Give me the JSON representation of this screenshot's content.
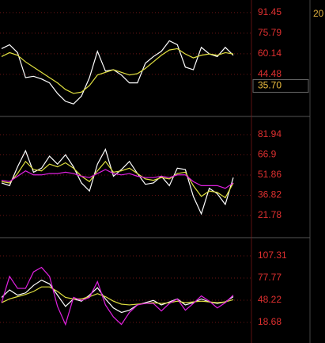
{
  "side_label": "20",
  "chart_data": [
    {
      "type": "line",
      "ylim": [
        12.5,
        101
      ],
      "yticks": [
        91.45,
        75.79,
        60.14,
        44.48
      ],
      "grid": true,
      "marker": {
        "value": 35.7,
        "label": "35.70"
      },
      "series": [
        {
          "name": "white",
          "color": "#ffffff",
          "values": [
            64,
            67,
            61,
            42,
            43,
            41,
            38,
            30,
            24,
            22,
            28,
            42,
            62,
            47,
            48,
            44,
            38,
            38,
            53,
            58,
            62,
            70,
            67,
            50,
            48,
            65,
            60,
            58,
            65,
            59
          ]
        },
        {
          "name": "yellow",
          "color": "#e0e040",
          "values": [
            58,
            61,
            59,
            54,
            50,
            46,
            42,
            38,
            33,
            30,
            31,
            36,
            44,
            46,
            48,
            46,
            44,
            45,
            49,
            54,
            59,
            63,
            64,
            60,
            57,
            59,
            60,
            59,
            61,
            60
          ]
        }
      ]
    },
    {
      "type": "line",
      "ylim": [
        5.3,
        95.5
      ],
      "yticks": [
        81.94,
        66.9,
        51.86,
        36.82,
        21.78
      ],
      "grid": true,
      "series": [
        {
          "name": "white",
          "color": "#ffffff",
          "values": [
            46,
            44,
            58,
            70,
            54,
            57,
            66,
            60,
            67,
            58,
            46,
            40,
            60,
            71,
            51,
            56,
            62,
            53,
            45,
            46,
            51,
            44,
            57,
            56,
            36,
            23,
            42,
            38,
            30,
            50
          ]
        },
        {
          "name": "yellow",
          "color": "#e0e040",
          "values": [
            47,
            46,
            53,
            62,
            56,
            55,
            60,
            58,
            61,
            57,
            51,
            47,
            55,
            62,
            54,
            55,
            57,
            53,
            49,
            48,
            50,
            49,
            53,
            54,
            44,
            36,
            40,
            39,
            35,
            46
          ]
        },
        {
          "name": "magenta",
          "color": "#e020e0",
          "values": [
            48,
            47,
            51,
            55,
            52,
            52,
            53,
            53,
            54,
            53,
            51,
            50,
            53,
            56,
            53,
            52,
            53,
            51,
            50,
            50,
            51,
            50,
            52,
            52,
            47,
            44,
            44,
            44,
            42,
            46
          ]
        }
      ]
    },
    {
      "type": "line",
      "ylim": [
        -8.7,
        131.6
      ],
      "yticks": [
        107.31,
        77.77,
        48.22,
        18.68
      ],
      "grid": true,
      "series": [
        {
          "name": "white",
          "color": "#ffffff",
          "values": [
            52,
            62,
            55,
            58,
            68,
            75,
            70,
            55,
            40,
            50,
            47,
            55,
            65,
            50,
            38,
            32,
            35,
            42,
            45,
            48,
            42,
            46,
            50,
            42,
            45,
            50,
            46,
            44,
            46,
            53
          ]
        },
        {
          "name": "yellow",
          "color": "#e0e040",
          "values": [
            45,
            50,
            53,
            56,
            60,
            66,
            66,
            60,
            52,
            50,
            50,
            53,
            57,
            53,
            47,
            43,
            42,
            43,
            44,
            45,
            44,
            45,
            47,
            45,
            46,
            47,
            46,
            45,
            46,
            49
          ]
        },
        {
          "name": "magenta",
          "color": "#e020e0",
          "values": [
            45,
            80,
            64,
            64,
            86,
            92,
            80,
            40,
            16,
            52,
            48,
            52,
            73,
            42,
            26,
            16,
            32,
            42,
            44,
            44,
            34,
            44,
            50,
            35,
            44,
            54,
            47,
            38,
            45,
            55
          ]
        }
      ]
    }
  ]
}
